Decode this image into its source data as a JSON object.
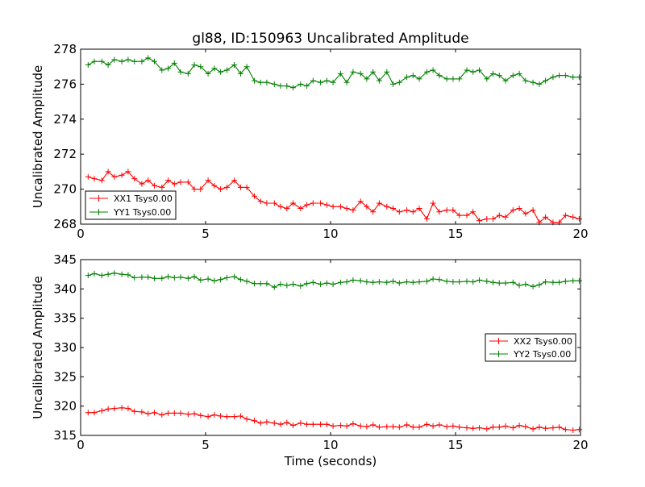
{
  "page_title": "gl88, ID:150963 Uncalibrated Amplitude",
  "chart_data": [
    {
      "type": "line",
      "title": "gl88, ID:150963 Uncalibrated Amplitude",
      "xlabel": "",
      "ylabel": "Uncalibrated Amplitude",
      "xlim": [
        0,
        20
      ],
      "ylim": [
        268,
        278
      ],
      "x_ticks": [
        "0",
        "5",
        "10",
        "15",
        "20"
      ],
      "y_ticks": [
        "268",
        "270",
        "272",
        "274",
        "276",
        "278"
      ],
      "legend_position": "lower-left",
      "grid": false,
      "series": [
        {
          "name": "XX1 Tsys0.00",
          "color": "#ff0000",
          "x": [
            0.3,
            0.55,
            0.85,
            1.1,
            1.35,
            1.65,
            1.9,
            2.15,
            2.45,
            2.7,
            2.95,
            3.25,
            3.5,
            3.75,
            4.0,
            4.3,
            4.55,
            4.8,
            5.1,
            5.35,
            5.6,
            5.85,
            6.15,
            6.4,
            6.65,
            6.95,
            7.2,
            7.45,
            7.75,
            8.0,
            8.25,
            8.5,
            8.8,
            9.05,
            9.3,
            9.6,
            9.85,
            10.1,
            10.4,
            10.65,
            10.9,
            11.2,
            11.45,
            11.7,
            11.95,
            12.25,
            12.5,
            12.75,
            13.05,
            13.3,
            13.55,
            13.85,
            14.1,
            14.35,
            14.65,
            14.9,
            15.15,
            15.45,
            15.7,
            15.95,
            16.25,
            16.5,
            16.75,
            17.0,
            17.3,
            17.55,
            17.8,
            18.1,
            18.35,
            18.6,
            18.9,
            19.15,
            19.4,
            19.7,
            19.95
          ],
          "values": [
            270.7,
            270.6,
            270.5,
            271.0,
            270.7,
            270.8,
            271.0,
            270.6,
            270.3,
            270.5,
            270.2,
            270.1,
            270.5,
            270.3,
            270.4,
            270.4,
            270.0,
            270.0,
            270.5,
            270.2,
            270.0,
            270.1,
            270.5,
            270.1,
            270.1,
            269.6,
            269.3,
            269.2,
            269.2,
            269.0,
            268.9,
            269.2,
            268.9,
            269.1,
            269.2,
            269.2,
            269.1,
            269.0,
            269.0,
            268.9,
            268.8,
            269.3,
            269.0,
            268.7,
            269.2,
            269.0,
            268.9,
            268.7,
            268.8,
            268.7,
            268.9,
            268.3,
            269.2,
            268.7,
            268.8,
            268.8,
            268.5,
            268.5,
            268.7,
            268.2,
            268.3,
            268.3,
            268.5,
            268.4,
            268.8,
            268.9,
            268.6,
            268.8,
            268.1,
            268.4,
            268.1,
            268.1,
            268.5,
            268.4,
            268.3
          ]
        },
        {
          "name": "YY1 Tsys0.00",
          "color": "#008000",
          "x": [
            0.3,
            0.55,
            0.85,
            1.1,
            1.35,
            1.65,
            1.9,
            2.15,
            2.45,
            2.7,
            2.95,
            3.25,
            3.5,
            3.75,
            4.0,
            4.3,
            4.55,
            4.8,
            5.1,
            5.35,
            5.6,
            5.85,
            6.15,
            6.4,
            6.65,
            6.95,
            7.2,
            7.45,
            7.75,
            8.0,
            8.25,
            8.5,
            8.8,
            9.05,
            9.3,
            9.6,
            9.85,
            10.1,
            10.4,
            10.65,
            10.9,
            11.2,
            11.45,
            11.7,
            11.95,
            12.25,
            12.5,
            12.75,
            13.05,
            13.3,
            13.55,
            13.85,
            14.1,
            14.35,
            14.65,
            14.9,
            15.15,
            15.45,
            15.7,
            15.95,
            16.25,
            16.5,
            16.75,
            17.0,
            17.3,
            17.55,
            17.8,
            18.1,
            18.35,
            18.6,
            18.9,
            19.15,
            19.4,
            19.7,
            19.95
          ],
          "values": [
            277.1,
            277.3,
            277.3,
            277.1,
            277.4,
            277.3,
            277.4,
            277.3,
            277.3,
            277.5,
            277.3,
            276.8,
            276.9,
            277.2,
            276.7,
            276.6,
            277.1,
            277.0,
            276.6,
            276.9,
            276.7,
            276.8,
            277.1,
            276.6,
            277.0,
            276.2,
            276.1,
            276.1,
            276.0,
            275.9,
            275.9,
            275.8,
            276.0,
            275.9,
            276.2,
            276.1,
            276.2,
            276.1,
            276.6,
            276.1,
            276.7,
            276.6,
            276.3,
            276.7,
            276.2,
            276.7,
            276.0,
            276.1,
            276.4,
            276.5,
            276.3,
            276.7,
            276.8,
            276.5,
            276.3,
            276.3,
            276.3,
            276.8,
            276.7,
            276.8,
            276.3,
            276.6,
            276.5,
            276.2,
            276.5,
            276.6,
            276.2,
            276.1,
            276.0,
            276.2,
            276.4,
            276.5,
            276.5,
            276.4,
            276.4
          ]
        }
      ]
    },
    {
      "type": "line",
      "title": "",
      "xlabel": "Time (seconds)",
      "ylabel": "Uncalibrated Amplitude",
      "xlim": [
        0,
        20
      ],
      "ylim": [
        315,
        345
      ],
      "x_ticks": [
        "0",
        "5",
        "10",
        "15",
        "20"
      ],
      "y_ticks": [
        "315",
        "320",
        "325",
        "330",
        "335",
        "340",
        "345"
      ],
      "legend_position": "center-right",
      "grid": false,
      "series": [
        {
          "name": "XX2 Tsys0.00",
          "color": "#ff0000",
          "x": [
            0.3,
            0.55,
            0.85,
            1.1,
            1.35,
            1.65,
            1.9,
            2.15,
            2.45,
            2.7,
            2.95,
            3.25,
            3.5,
            3.75,
            4.0,
            4.3,
            4.55,
            4.8,
            5.1,
            5.35,
            5.6,
            5.85,
            6.15,
            6.4,
            6.65,
            6.95,
            7.2,
            7.45,
            7.75,
            8.0,
            8.25,
            8.5,
            8.8,
            9.05,
            9.3,
            9.6,
            9.85,
            10.1,
            10.4,
            10.65,
            10.9,
            11.2,
            11.45,
            11.7,
            11.95,
            12.25,
            12.5,
            12.75,
            13.05,
            13.3,
            13.55,
            13.85,
            14.1,
            14.35,
            14.65,
            14.9,
            15.15,
            15.45,
            15.7,
            15.95,
            16.25,
            16.5,
            16.75,
            17.0,
            17.3,
            17.55,
            17.8,
            18.1,
            18.35,
            18.6,
            18.9,
            19.15,
            19.4,
            19.7,
            19.95
          ],
          "values": [
            318.9,
            318.9,
            319.2,
            319.5,
            319.6,
            319.7,
            319.6,
            319.1,
            319.0,
            318.7,
            318.9,
            318.5,
            318.8,
            318.8,
            318.8,
            318.6,
            318.7,
            318.4,
            318.2,
            318.5,
            318.3,
            318.2,
            318.2,
            318.3,
            317.8,
            317.5,
            317.1,
            317.3,
            317.1,
            316.9,
            317.2,
            316.7,
            317.1,
            316.9,
            316.9,
            316.9,
            316.9,
            316.6,
            316.7,
            316.6,
            317.0,
            316.6,
            316.5,
            316.8,
            316.4,
            316.5,
            316.5,
            316.4,
            316.8,
            316.4,
            316.4,
            316.9,
            316.6,
            316.8,
            316.5,
            316.6,
            316.4,
            316.3,
            316.2,
            316.3,
            316.1,
            316.4,
            316.4,
            316.6,
            316.3,
            316.7,
            316.5,
            316.1,
            316.4,
            316.2,
            316.3,
            316.4,
            316.0,
            315.9,
            316.0
          ]
        },
        {
          "name": "YY2 Tsys0.00",
          "color": "#008000",
          "x": [
            0.3,
            0.55,
            0.85,
            1.1,
            1.35,
            1.65,
            1.9,
            2.15,
            2.45,
            2.7,
            2.95,
            3.25,
            3.5,
            3.75,
            4.0,
            4.3,
            4.55,
            4.8,
            5.1,
            5.35,
            5.6,
            5.85,
            6.15,
            6.4,
            6.65,
            6.95,
            7.2,
            7.45,
            7.75,
            8.0,
            8.25,
            8.5,
            8.8,
            9.05,
            9.3,
            9.6,
            9.85,
            10.1,
            10.4,
            10.65,
            10.9,
            11.2,
            11.45,
            11.7,
            11.95,
            12.25,
            12.5,
            12.75,
            13.05,
            13.3,
            13.55,
            13.85,
            14.1,
            14.35,
            14.65,
            14.9,
            15.15,
            15.45,
            15.7,
            15.95,
            16.25,
            16.5,
            16.75,
            17.0,
            17.3,
            17.55,
            17.8,
            18.1,
            18.35,
            18.6,
            18.9,
            19.15,
            19.4,
            19.7,
            19.95
          ],
          "values": [
            342.3,
            342.6,
            342.3,
            342.5,
            342.7,
            342.5,
            342.4,
            341.9,
            342.0,
            342.0,
            341.8,
            341.8,
            342.1,
            341.9,
            342.0,
            341.8,
            342.1,
            341.5,
            341.7,
            341.4,
            341.6,
            341.9,
            342.1,
            341.6,
            341.3,
            340.9,
            340.9,
            340.9,
            340.3,
            340.8,
            340.6,
            340.8,
            340.5,
            340.9,
            341.1,
            340.8,
            341.0,
            340.8,
            341.1,
            341.2,
            341.5,
            341.4,
            341.2,
            341.1,
            341.2,
            341.1,
            341.3,
            341.0,
            341.2,
            341.1,
            341.2,
            341.3,
            341.7,
            341.6,
            341.3,
            341.2,
            341.2,
            341.3,
            341.2,
            341.5,
            341.3,
            341.1,
            341.0,
            341.0,
            341.1,
            340.6,
            340.8,
            340.4,
            340.7,
            341.2,
            341.1,
            341.1,
            341.3,
            341.4,
            341.4
          ]
        }
      ]
    }
  ]
}
